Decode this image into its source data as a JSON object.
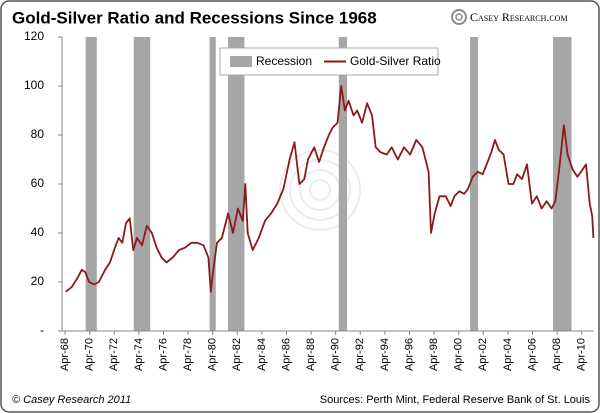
{
  "chart_data": {
    "type": "line",
    "title": "Gold-Silver Ratio and Recessions Since 1968",
    "logo": "Casey Research.com",
    "footer_left": "© Casey Research 2011",
    "footer_right": "Sources: Perth Mint, Federal Reserve Bank of St. Louis",
    "legend": "top-center",
    "grid": false,
    "xlim": [
      1968,
      2011.25
    ],
    "ylim": [
      0,
      120
    ],
    "yticks": [
      {
        "value": 0,
        "label": "-"
      },
      20,
      40,
      60,
      80,
      100,
      120
    ],
    "xticks": [
      {
        "value": 1968.25,
        "label": "Apr-68"
      },
      {
        "value": 1970.25,
        "label": "Apr-70"
      },
      {
        "value": 1972.25,
        "label": "Apr-72"
      },
      {
        "value": 1974.25,
        "label": "Apr-74"
      },
      {
        "value": 1976.25,
        "label": "Apr-76"
      },
      {
        "value": 1978.25,
        "label": "Apr-78"
      },
      {
        "value": 1980.25,
        "label": "Apr-80"
      },
      {
        "value": 1982.25,
        "label": "Apr-82"
      },
      {
        "value": 1984.25,
        "label": "Apr-84"
      },
      {
        "value": 1986.25,
        "label": "Apr-86"
      },
      {
        "value": 1988.25,
        "label": "Apr-88"
      },
      {
        "value": 1990.25,
        "label": "Apr-90"
      },
      {
        "value": 1992.25,
        "label": "Apr-92"
      },
      {
        "value": 1994.25,
        "label": "Apr-94"
      },
      {
        "value": 1996.25,
        "label": "Apr-96"
      },
      {
        "value": 1998.25,
        "label": "Apr-98"
      },
      {
        "value": 2000.25,
        "label": "Apr-00"
      },
      {
        "value": 2002.25,
        "label": "Apr-02"
      },
      {
        "value": 2004.25,
        "label": "Apr-04"
      },
      {
        "value": 2006.25,
        "label": "Apr-06"
      },
      {
        "value": 2008.25,
        "label": "Apr-08"
      },
      {
        "value": 2010.25,
        "label": "Apr-10"
      }
    ],
    "series": [
      {
        "name": "Recession",
        "type": "band",
        "color": "#a6a6a6",
        "ranges": [
          [
            1969.92,
            1970.83
          ],
          [
            1973.83,
            1975.17
          ],
          [
            1980.0,
            1980.5
          ],
          [
            1981.5,
            1982.83
          ],
          [
            1990.5,
            1991.17
          ],
          [
            2001.17,
            2001.83
          ],
          [
            2007.92,
            2009.42
          ]
        ]
      },
      {
        "name": "Gold-Silver Ratio",
        "type": "line",
        "color": "#8b1a1a",
        "x": [
          1968.3,
          1968.8,
          1969.3,
          1969.6,
          1969.9,
          1970.2,
          1970.6,
          1971.0,
          1971.5,
          1971.9,
          1972.3,
          1972.6,
          1972.9,
          1973.2,
          1973.5,
          1973.8,
          1974.1,
          1974.5,
          1974.9,
          1975.3,
          1975.7,
          1976.1,
          1976.5,
          1977.0,
          1977.5,
          1978.0,
          1978.5,
          1979.0,
          1979.5,
          1979.9,
          1980.1,
          1980.3,
          1980.6,
          1981.0,
          1981.5,
          1981.9,
          1982.3,
          1982.7,
          1982.9,
          1983.1,
          1983.5,
          1984.0,
          1984.5,
          1985.0,
          1985.5,
          1986.0,
          1986.5,
          1986.9,
          1987.3,
          1987.7,
          1988.0,
          1988.5,
          1988.9,
          1989.3,
          1989.7,
          1990.0,
          1990.4,
          1990.7,
          1991.0,
          1991.3,
          1991.7,
          1992.0,
          1992.4,
          1992.8,
          1993.2,
          1993.5,
          1993.9,
          1994.4,
          1994.8,
          1995.3,
          1995.8,
          1996.3,
          1996.8,
          1997.3,
          1997.8,
          1998.0,
          1998.3,
          1998.7,
          1999.2,
          1999.6,
          1999.9,
          2000.3,
          2000.7,
          2001.0,
          2001.4,
          2001.8,
          2002.2,
          2002.6,
          2002.9,
          2003.2,
          2003.5,
          2003.9,
          2004.3,
          2004.7,
          2005.0,
          2005.4,
          2005.8,
          2006.2,
          2006.6,
          2007.0,
          2007.4,
          2007.8,
          2008.1,
          2008.4,
          2008.8,
          2009.1,
          2009.5,
          2009.9,
          2010.2,
          2010.6,
          2010.9,
          2011.1,
          2011.2
        ],
        "values": [
          16,
          18,
          22,
          25,
          24,
          20,
          19,
          20,
          25,
          28,
          34,
          38,
          36,
          44,
          46,
          33,
          38,
          35,
          43,
          40,
          34,
          30,
          28,
          30,
          33,
          34,
          36,
          36,
          35,
          30,
          16,
          25,
          36,
          38,
          48,
          40,
          50,
          45,
          60,
          40,
          33,
          38,
          45,
          48,
          52,
          58,
          70,
          77,
          60,
          62,
          70,
          75,
          69,
          75,
          80,
          83,
          85,
          100,
          90,
          94,
          88,
          90,
          85,
          93,
          88,
          75,
          73,
          72,
          75,
          70,
          75,
          72,
          78,
          75,
          65,
          40,
          48,
          55,
          55,
          51,
          55,
          57,
          56,
          58,
          63,
          65,
          64,
          69,
          73,
          78,
          74,
          72,
          60,
          60,
          64,
          62,
          68,
          52,
          55,
          50,
          53,
          50,
          53,
          65,
          84,
          72,
          66,
          63,
          65,
          68,
          52,
          47,
          38
        ]
      }
    ]
  }
}
